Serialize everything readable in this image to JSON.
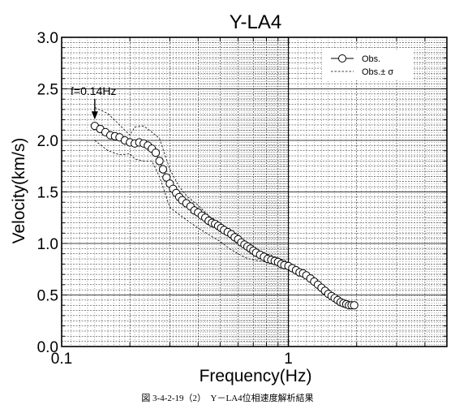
{
  "chart_data": {
    "type": "scatter",
    "title": "Y-LA4",
    "xlabel": "Frequency(Hz)",
    "ylabel": "Velocity(km/s)",
    "xscale": "log",
    "xlim": [
      0.1,
      5
    ],
    "ylim": [
      0,
      3
    ],
    "x_tick_labels": [
      {
        "value": 0.1,
        "label": "0.1"
      },
      {
        "value": 1,
        "label": "1"
      }
    ],
    "y_tick_labels": [
      {
        "value": 0.0,
        "label": "0.0"
      },
      {
        "value": 0.5,
        "label": "0.5"
      },
      {
        "value": 1.0,
        "label": "1.0"
      },
      {
        "value": 1.5,
        "label": "1.5"
      },
      {
        "value": 2.0,
        "label": "2.0"
      },
      {
        "value": 2.5,
        "label": "2.5"
      },
      {
        "value": 3.0,
        "label": "3.0"
      }
    ],
    "grid": true,
    "legend_position": "top-right",
    "legend": [
      {
        "label": "Obs.",
        "style": "line-with-open-circle"
      },
      {
        "label": "Obs.± σ",
        "style": "dashed-line"
      }
    ],
    "annotation": {
      "text": "f=0.14Hz",
      "x": 0.14,
      "y": 2.14
    },
    "series": [
      {
        "name": "Obs.",
        "x": [
          0.14,
          0.148,
          0.156,
          0.164,
          0.172,
          0.18,
          0.19,
          0.2,
          0.21,
          0.22,
          0.23,
          0.24,
          0.25,
          0.26,
          0.27,
          0.28,
          0.29,
          0.3,
          0.31,
          0.32,
          0.33,
          0.34,
          0.355,
          0.37,
          0.385,
          0.4,
          0.415,
          0.43,
          0.445,
          0.46,
          0.475,
          0.49,
          0.505,
          0.52,
          0.54,
          0.56,
          0.58,
          0.6,
          0.62,
          0.64,
          0.66,
          0.68,
          0.7,
          0.72,
          0.75,
          0.78,
          0.81,
          0.84,
          0.87,
          0.9,
          0.93,
          0.96,
          1.0,
          1.04,
          1.08,
          1.12,
          1.16,
          1.2,
          1.25,
          1.3,
          1.35,
          1.4,
          1.45,
          1.5,
          1.55,
          1.6,
          1.65,
          1.7,
          1.75,
          1.8,
          1.85,
          1.9,
          1.95
        ],
        "y": [
          2.14,
          2.11,
          2.08,
          2.05,
          2.04,
          2.03,
          2.0,
          1.98,
          1.97,
          1.98,
          1.97,
          1.95,
          1.92,
          1.88,
          1.8,
          1.72,
          1.64,
          1.58,
          1.53,
          1.49,
          1.45,
          1.42,
          1.39,
          1.36,
          1.32,
          1.3,
          1.27,
          1.25,
          1.22,
          1.2,
          1.19,
          1.17,
          1.15,
          1.13,
          1.11,
          1.09,
          1.06,
          1.04,
          1.01,
          0.99,
          0.97,
          0.95,
          0.93,
          0.91,
          0.89,
          0.87,
          0.85,
          0.84,
          0.83,
          0.82,
          0.8,
          0.79,
          0.78,
          0.76,
          0.74,
          0.72,
          0.71,
          0.69,
          0.66,
          0.63,
          0.6,
          0.57,
          0.54,
          0.51,
          0.49,
          0.47,
          0.45,
          0.43,
          0.42,
          0.41,
          0.4,
          0.4,
          0.4
        ]
      },
      {
        "name": "Obs.+σ",
        "x": [
          0.14,
          0.16,
          0.18,
          0.2,
          0.21,
          0.23,
          0.25,
          0.27,
          0.3,
          0.33,
          0.36,
          0.4,
          0.45,
          0.5,
          0.55,
          0.6,
          0.65,
          0.7,
          0.8,
          0.9,
          1.0
        ],
        "y": [
          2.32,
          2.26,
          2.15,
          2.05,
          2.13,
          2.14,
          2.08,
          2.02,
          1.72,
          1.55,
          1.45,
          1.37,
          1.26,
          1.2,
          1.12,
          1.06,
          1.01,
          0.96,
          0.9,
          0.86,
          0.82
        ]
      },
      {
        "name": "Obs.−σ",
        "x": [
          0.14,
          0.16,
          0.18,
          0.2,
          0.21,
          0.23,
          0.25,
          0.27,
          0.3,
          0.33,
          0.36,
          0.4,
          0.45,
          0.5,
          0.55,
          0.6,
          0.65,
          0.7,
          0.8,
          0.9,
          1.0
        ],
        "y": [
          2.0,
          1.9,
          1.86,
          1.87,
          1.82,
          1.8,
          1.8,
          1.65,
          1.35,
          1.28,
          1.22,
          1.15,
          1.08,
          1.02,
          0.95,
          0.9,
          0.86,
          0.84,
          0.82,
          0.8,
          0.79
        ]
      }
    ]
  },
  "caption": "図 3-4-2-19（2）　Y－LA4位相速度解析結果"
}
